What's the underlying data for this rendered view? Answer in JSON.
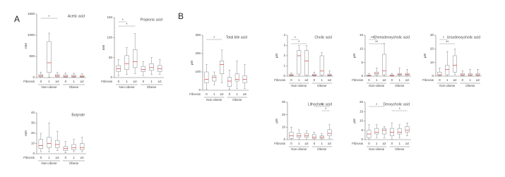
{
  "panel_labels": [
    "A",
    "B"
  ],
  "chart_data": [
    {
      "type": "box",
      "title": "Acetic acid",
      "ylabel": "mM",
      "xlabel": "Fibrosis",
      "categories": [
        "0",
        "1",
        "≥2",
        "0",
        "1",
        "≥2"
      ],
      "groups": [
        "Non-obese",
        "Obese"
      ],
      "ylim": [
        0,
        1500
      ],
      "yticks": [
        0,
        500,
        1000,
        1500
      ],
      "color": "#888888",
      "boxes": [
        {
          "min": 5,
          "q1": 20,
          "median": 40,
          "q3": 70,
          "max": 130
        },
        {
          "min": 10,
          "q1": 120,
          "median": 350,
          "q3": 850,
          "max": 1050
        },
        {
          "min": 5,
          "q1": 20,
          "median": 40,
          "q3": 70,
          "max": 120
        },
        {
          "min": 5,
          "q1": 15,
          "median": 30,
          "q3": 60,
          "max": 110
        },
        {
          "min": 5,
          "q1": 15,
          "median": 30,
          "q3": 60,
          "max": 100
        },
        {
          "min": 5,
          "q1": 15,
          "median": 25,
          "q3": 50,
          "max": 90
        }
      ],
      "sig": [
        {
          "from": 0,
          "to": 2,
          "label": "*"
        }
      ]
    },
    {
      "type": "box",
      "title": "Propionic acid",
      "ylabel": "mM",
      "xlabel": "Fibrosis",
      "categories": [
        "0",
        "1",
        "≥2",
        "0",
        "1",
        "≥2"
      ],
      "groups": [
        "Non-obese",
        "Obese"
      ],
      "ylim": [
        0,
        150
      ],
      "yticks": [
        0,
        50,
        100,
        150
      ],
      "color": "#888888",
      "boxes": [
        {
          "min": 5,
          "q1": 15,
          "median": 22,
          "q3": 30,
          "max": 45
        },
        {
          "min": 8,
          "q1": 20,
          "median": 35,
          "q3": 55,
          "max": 75
        },
        {
          "min": 10,
          "q1": 25,
          "median": 40,
          "q3": 70,
          "max": 110
        },
        {
          "min": 5,
          "q1": 15,
          "median": 20,
          "q3": 28,
          "max": 40
        },
        {
          "min": 8,
          "q1": 18,
          "median": 25,
          "q3": 35,
          "max": 50
        },
        {
          "min": 8,
          "q1": 15,
          "median": 22,
          "q3": 30,
          "max": 45
        }
      ],
      "sig": [
        {
          "from": 0,
          "to": 1,
          "label": "*"
        },
        {
          "from": 0,
          "to": 2,
          "label": "*"
        }
      ]
    },
    {
      "type": "box",
      "title": "Butyrate",
      "ylabel": "mM",
      "xlabel": "Fibrosis",
      "categories": [
        "0",
        "1",
        "≥2",
        "0",
        "1",
        "≥2"
      ],
      "groups": [
        "Non-obese",
        "Obese"
      ],
      "ylim": [
        0,
        40
      ],
      "yticks": [
        0,
        10,
        20,
        30,
        40
      ],
      "color": "#888888",
      "boxes": [
        {
          "min": 2,
          "q1": 5,
          "median": 8,
          "q3": 14,
          "max": 20
        },
        {
          "min": 2,
          "q1": 6,
          "median": 10,
          "q3": 16,
          "max": 30
        },
        {
          "min": 3,
          "q1": 6,
          "median": 9,
          "q3": 13,
          "max": 22
        },
        {
          "min": 1,
          "q1": 3,
          "median": 5,
          "q3": 7,
          "max": 12
        },
        {
          "min": 2,
          "q1": 4,
          "median": 6,
          "q3": 9,
          "max": 14
        },
        {
          "min": 2,
          "q1": 4,
          "median": 6,
          "q3": 10,
          "max": 16
        }
      ],
      "sig": []
    },
    {
      "type": "box",
      "title": "Total bile acid",
      "ylabel": "μM",
      "xlabel": "Fibrosis",
      "categories": [
        "0",
        "1",
        "≥2",
        "0",
        "1",
        "≥2"
      ],
      "groups": [
        "Non-obese",
        "Obese"
      ],
      "ylim": [
        0,
        300
      ],
      "yticks": [
        0,
        100,
        200,
        300
      ],
      "color": "#888888",
      "boxes": [
        {
          "min": 5,
          "q1": 40,
          "median": 60,
          "q3": 100,
          "max": 140
        },
        {
          "min": 30,
          "q1": 50,
          "median": 70,
          "q3": 80,
          "max": 100
        },
        {
          "min": 40,
          "q1": 90,
          "median": 140,
          "q3": 160,
          "max": 220
        },
        {
          "min": 5,
          "q1": 20,
          "median": 50,
          "q3": 70,
          "max": 110
        },
        {
          "min": 10,
          "q1": 50,
          "median": 60,
          "q3": 90,
          "max": 160
        },
        {
          "min": 10,
          "q1": 40,
          "median": 60,
          "q3": 80,
          "max": 140
        }
      ],
      "sig": [
        {
          "from": 0,
          "to": 2,
          "label": "*"
        }
      ]
    },
    {
      "type": "box",
      "title": "Cholic acid",
      "ylabel": "μM",
      "xlabel": "Fibrosis",
      "categories": [
        "0",
        "1",
        "≥2",
        "0",
        "1",
        "≥2"
      ],
      "groups": [
        "Non-obese",
        "Obese"
      ],
      "ylim": [
        0,
        4
      ],
      "yticks": [
        0,
        1,
        2,
        3,
        4
      ],
      "color": "#888888",
      "boxes": [
        {
          "min": 0,
          "q1": 0.05,
          "median": 0.1,
          "q3": 0.2,
          "max": 0.3
        },
        {
          "min": 0,
          "q1": 0.2,
          "median": 2,
          "q3": 2.5,
          "max": 3
        },
        {
          "min": 0,
          "q1": 0.1,
          "median": 1.5,
          "q3": 2.5,
          "max": 3
        },
        {
          "min": 0,
          "q1": 0.05,
          "median": 0.1,
          "q3": 0.2,
          "max": 0.4
        },
        {
          "min": 0,
          "q1": 0.1,
          "median": 0.5,
          "q3": 2,
          "max": 2.3
        },
        {
          "min": 0,
          "q1": 0.05,
          "median": 0.1,
          "q3": 0.2,
          "max": 0.5
        }
      ],
      "sig": [
        {
          "from": 0,
          "to": 1,
          "label": "*"
        },
        {
          "from": 0,
          "to": 2,
          "label": "*"
        }
      ]
    },
    {
      "type": "box",
      "title": "Chenodeoxycholic acid",
      "ylabel": "μM",
      "xlabel": "Fibrosis",
      "categories": [
        "0",
        "1",
        "≥2",
        "0",
        "1",
        "≥2"
      ],
      "groups": [
        "Non-obese",
        "Obese"
      ],
      "ylim": [
        0,
        15
      ],
      "yticks": [
        0,
        5,
        10,
        15
      ],
      "color": "#888888",
      "boxes": [
        {
          "min": 0,
          "q1": 0.1,
          "median": 0.2,
          "q3": 0.4,
          "max": 1
        },
        {
          "min": 0,
          "q1": 0.5,
          "median": 1,
          "q3": 1.5,
          "max": 3
        },
        {
          "min": 0,
          "q1": 0.5,
          "median": 2,
          "q3": 8,
          "max": 12
        },
        {
          "min": 0,
          "q1": 0.1,
          "median": 0.2,
          "q3": 0.5,
          "max": 1
        },
        {
          "min": 0,
          "q1": 0.3,
          "median": 0.6,
          "q3": 1,
          "max": 3
        },
        {
          "min": 0,
          "q1": 0.3,
          "median": 0.6,
          "q3": 1,
          "max": 2.5
        }
      ],
      "sig": [
        {
          "from": 0,
          "to": 1,
          "label": "***"
        },
        {
          "from": 0,
          "to": 2,
          "label": "**"
        }
      ]
    },
    {
      "type": "box",
      "title": "Ursodeoxycholic acid",
      "ylabel": "μM",
      "xlabel": "Fibrosis",
      "categories": [
        "0",
        "1",
        "≥2",
        "0",
        "1",
        "≥2"
      ],
      "groups": [
        "Non-obese",
        "Obese"
      ],
      "ylim": [
        0,
        30
      ],
      "yticks": [
        0,
        10,
        20,
        30
      ],
      "color": "#888888",
      "boxes": [
        {
          "min": 0,
          "q1": 0.5,
          "median": 1,
          "q3": 3,
          "max": 6
        },
        {
          "min": 0,
          "q1": 1,
          "median": 5,
          "q3": 8,
          "max": 18
        },
        {
          "min": 1,
          "q1": 3,
          "median": 8,
          "q3": 15,
          "max": 20
        },
        {
          "min": 0,
          "q1": 0.5,
          "median": 1,
          "q3": 2,
          "max": 4
        },
        {
          "min": 0,
          "q1": 0.5,
          "median": 1,
          "q3": 2,
          "max": 5
        },
        {
          "min": 0,
          "q1": 0.5,
          "median": 1,
          "q3": 2,
          "max": 5
        }
      ],
      "sig": [
        {
          "from": 0,
          "to": 1,
          "label": "*"
        },
        {
          "from": 0,
          "to": 2,
          "label": "**"
        }
      ]
    },
    {
      "type": "box",
      "title": "Lithocholic acid",
      "ylabel": "μM",
      "xlabel": "Fibrosis",
      "categories": [
        "0",
        "1",
        "≥2",
        "0",
        "1",
        "≥2"
      ],
      "groups": [
        "Non-obese",
        "Obese"
      ],
      "ylim": [
        0,
        30
      ],
      "yticks": [
        0,
        10,
        20,
        30
      ],
      "color": "#888888",
      "boxes": [
        {
          "min": 0,
          "q1": 1,
          "median": 3,
          "q3": 6,
          "max": 10
        },
        {
          "min": 0,
          "q1": 2,
          "median": 3,
          "q3": 5,
          "max": 8
        },
        {
          "min": 0,
          "q1": 2,
          "median": 3,
          "q3": 5,
          "max": 7
        },
        {
          "min": 0,
          "q1": 1,
          "median": 2,
          "q3": 4,
          "max": 6
        },
        {
          "min": 0,
          "q1": 1,
          "median": 2,
          "q3": 3,
          "max": 5
        },
        {
          "min": 1,
          "q1": 3,
          "median": 5,
          "q3": 8,
          "max": 12
        }
      ],
      "sig": [
        {
          "from": 3,
          "to": 5,
          "label": "**"
        },
        {
          "from": 4,
          "to": 5,
          "label": "*"
        }
      ]
    },
    {
      "type": "box",
      "title": "Deoxycholic acid",
      "ylabel": "μM",
      "xlabel": "Fibrosis",
      "categories": [
        "0",
        "1",
        "≥2",
        "0",
        "1",
        "≥2"
      ],
      "groups": [
        "Non-obese",
        "Obese"
      ],
      "ylim": [
        0,
        20
      ],
      "yticks": [
        0,
        5,
        10,
        15,
        20
      ],
      "color": "#888888",
      "boxes": [
        {
          "min": 0,
          "q1": 1,
          "median": 3,
          "q3": 5,
          "max": 8
        },
        {
          "min": 1,
          "q1": 3,
          "median": 4,
          "q3": 6,
          "max": 8
        },
        {
          "min": 1,
          "q1": 3,
          "median": 5,
          "q3": 6,
          "max": 7
        },
        {
          "min": 0,
          "q1": 2,
          "median": 4,
          "q3": 6,
          "max": 9
        },
        {
          "min": 1,
          "q1": 3,
          "median": 4,
          "q3": 6,
          "max": 8
        },
        {
          "min": 2,
          "q1": 4,
          "median": 5,
          "q3": 7,
          "max": 9
        }
      ],
      "sig": [
        {
          "from": 0,
          "to": 2,
          "label": "*"
        },
        {
          "from": 3,
          "to": 5,
          "label": "*"
        }
      ]
    }
  ]
}
